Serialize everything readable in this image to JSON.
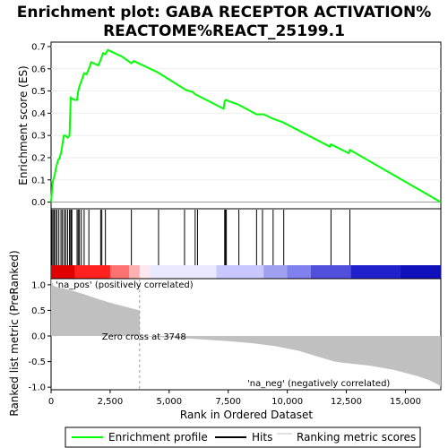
{
  "chart_data": {
    "type": "line",
    "title_lines": [
      "Enrichment plot: GABA RECEPTOR ACTIVATION%",
      "REACTOME%REACT_25199.1"
    ],
    "xlabel": "Rank in Ordered Dataset",
    "ylabel_top": "Enrichment score (ES)",
    "ylabel_bottom": "Ranked list metric (PreRanked)",
    "xlim": [
      0,
      16500
    ],
    "es_ylim": [
      -0.03,
      0.72
    ],
    "metric_ylim": [
      -1.05,
      1.12
    ],
    "x_ticks": [
      0,
      2500,
      5000,
      7500,
      10000,
      12500,
      15000
    ],
    "x_tick_labels": [
      "0",
      "2,500",
      "5,000",
      "7,500",
      "10,000",
      "12,500",
      "15,000"
    ],
    "es_ticks": [
      0.0,
      0.1,
      0.2,
      0.3,
      0.4,
      0.5,
      0.6,
      0.7
    ],
    "es_tick_labels": [
      "0.0",
      "0.1",
      "0.2",
      "0.3",
      "0.4",
      "0.5",
      "0.6",
      "0.7"
    ],
    "metric_ticks": [
      1.0,
      0.5,
      0.0,
      -0.5,
      -1.0
    ],
    "metric_tick_labels": [
      "1.0",
      "0.5",
      "0.0",
      "-0.5",
      "-1.0"
    ],
    "series": [
      {
        "name": "Enrichment profile",
        "color": "#00ff00",
        "points": [
          [
            0,
            0.0
          ],
          [
            30,
            0.04
          ],
          [
            60,
            0.08
          ],
          [
            90,
            0.1
          ],
          [
            150,
            0.12
          ],
          [
            200,
            0.15
          ],
          [
            250,
            0.17
          ],
          [
            300,
            0.19
          ],
          [
            350,
            0.195
          ],
          [
            420,
            0.22
          ],
          [
            480,
            0.26
          ],
          [
            540,
            0.3
          ],
          [
            600,
            0.3
          ],
          [
            700,
            0.29
          ],
          [
            780,
            0.3
          ],
          [
            830,
            0.47
          ],
          [
            900,
            0.465
          ],
          [
            1000,
            0.46
          ],
          [
            1100,
            0.46
          ],
          [
            1150,
            0.5
          ],
          [
            1200,
            0.52
          ],
          [
            1300,
            0.55
          ],
          [
            1400,
            0.58
          ],
          [
            1500,
            0.575
          ],
          [
            1600,
            0.6
          ],
          [
            1700,
            0.63
          ],
          [
            1800,
            0.625
          ],
          [
            1900,
            0.62
          ],
          [
            2000,
            0.615
          ],
          [
            2100,
            0.64
          ],
          [
            2200,
            0.67
          ],
          [
            2300,
            0.665
          ],
          [
            2400,
            0.685
          ],
          [
            2600,
            0.675
          ],
          [
            3000,
            0.655
          ],
          [
            3400,
            0.625
          ],
          [
            3500,
            0.635
          ],
          [
            4500,
            0.585
          ],
          [
            5700,
            0.505
          ],
          [
            6000,
            0.495
          ],
          [
            6100,
            0.485
          ],
          [
            6200,
            0.48
          ],
          [
            7300,
            0.42
          ],
          [
            7350,
            0.455
          ],
          [
            7400,
            0.46
          ],
          [
            7500,
            0.455
          ],
          [
            7900,
            0.44
          ],
          [
            8700,
            0.395
          ],
          [
            9000,
            0.395
          ],
          [
            9400,
            0.375
          ],
          [
            9800,
            0.36
          ],
          [
            11800,
            0.25
          ],
          [
            11850,
            0.26
          ],
          [
            12600,
            0.22
          ],
          [
            12650,
            0.235
          ],
          [
            16500,
            0.0
          ]
        ]
      }
    ],
    "hits": [
      30,
      80,
      130,
      190,
      250,
      330,
      420,
      480,
      560,
      620,
      700,
      780,
      830,
      850,
      880,
      1100,
      1150,
      1200,
      1280,
      1400,
      1600,
      2100,
      2150,
      2300,
      3400,
      4550,
      5650,
      6100,
      6200,
      7350,
      7380,
      7420,
      7950,
      8700,
      8950,
      9400,
      9850,
      11850,
      12650
    ],
    "metric_profile": [
      [
        0,
        1.12
      ],
      [
        100,
        0.98
      ],
      [
        300,
        0.95
      ],
      [
        600,
        0.92
      ],
      [
        1000,
        0.87
      ],
      [
        1500,
        0.8
      ],
      [
        2000,
        0.72
      ],
      [
        2500,
        0.65
      ],
      [
        3000,
        0.59
      ],
      [
        3400,
        0.54
      ],
      [
        3748,
        0.5
      ],
      [
        3760,
        0.0
      ],
      [
        4500,
        -0.02
      ],
      [
        5500,
        -0.04
      ],
      [
        6500,
        -0.07
      ],
      [
        7500,
        -0.1
      ],
      [
        8500,
        -0.14
      ],
      [
        9500,
        -0.2
      ],
      [
        10500,
        -0.29
      ],
      [
        11000,
        -0.36
      ],
      [
        11500,
        -0.43
      ],
      [
        12000,
        -0.5
      ],
      [
        12500,
        -0.53
      ],
      [
        13500,
        -0.58
      ],
      [
        14500,
        -0.66
      ],
      [
        15500,
        -0.78
      ],
      [
        16000,
        -0.86
      ],
      [
        16300,
        -0.93
      ],
      [
        16500,
        -0.98
      ]
    ],
    "zero_cross_label": "Zero cross at 3748",
    "zero_cross_x": 3748,
    "pos_label": "'na_pos' (positively correlated)",
    "neg_label": "'na_neg' (negatively correlated)",
    "pos_label_color": "#cc0000",
    "neg_label_color": "#0000cc",
    "colorbar_stops": [
      [
        0,
        "#e00000"
      ],
      [
        1000,
        "#ff2020"
      ],
      [
        2500,
        "#ff7070"
      ],
      [
        3300,
        "#ffb0b0"
      ],
      [
        3748,
        "#ffe8ee"
      ],
      [
        4200,
        "#e8e8ff"
      ],
      [
        7000,
        "#c8c8ff"
      ],
      [
        9000,
        "#a0a0f0"
      ],
      [
        10000,
        "#8080ee"
      ],
      [
        11000,
        "#5050dd"
      ],
      [
        12700,
        "#2020cc"
      ],
      [
        14800,
        "#1010bb"
      ],
      [
        16500,
        "#1010bb"
      ]
    ],
    "legend": [
      {
        "label": "Enrichment profile",
        "color": "#00ff00"
      },
      {
        "label": "Hits",
        "color": "#000000"
      },
      {
        "label": "Ranking metric scores",
        "color": "#c0c0c0"
      }
    ]
  }
}
